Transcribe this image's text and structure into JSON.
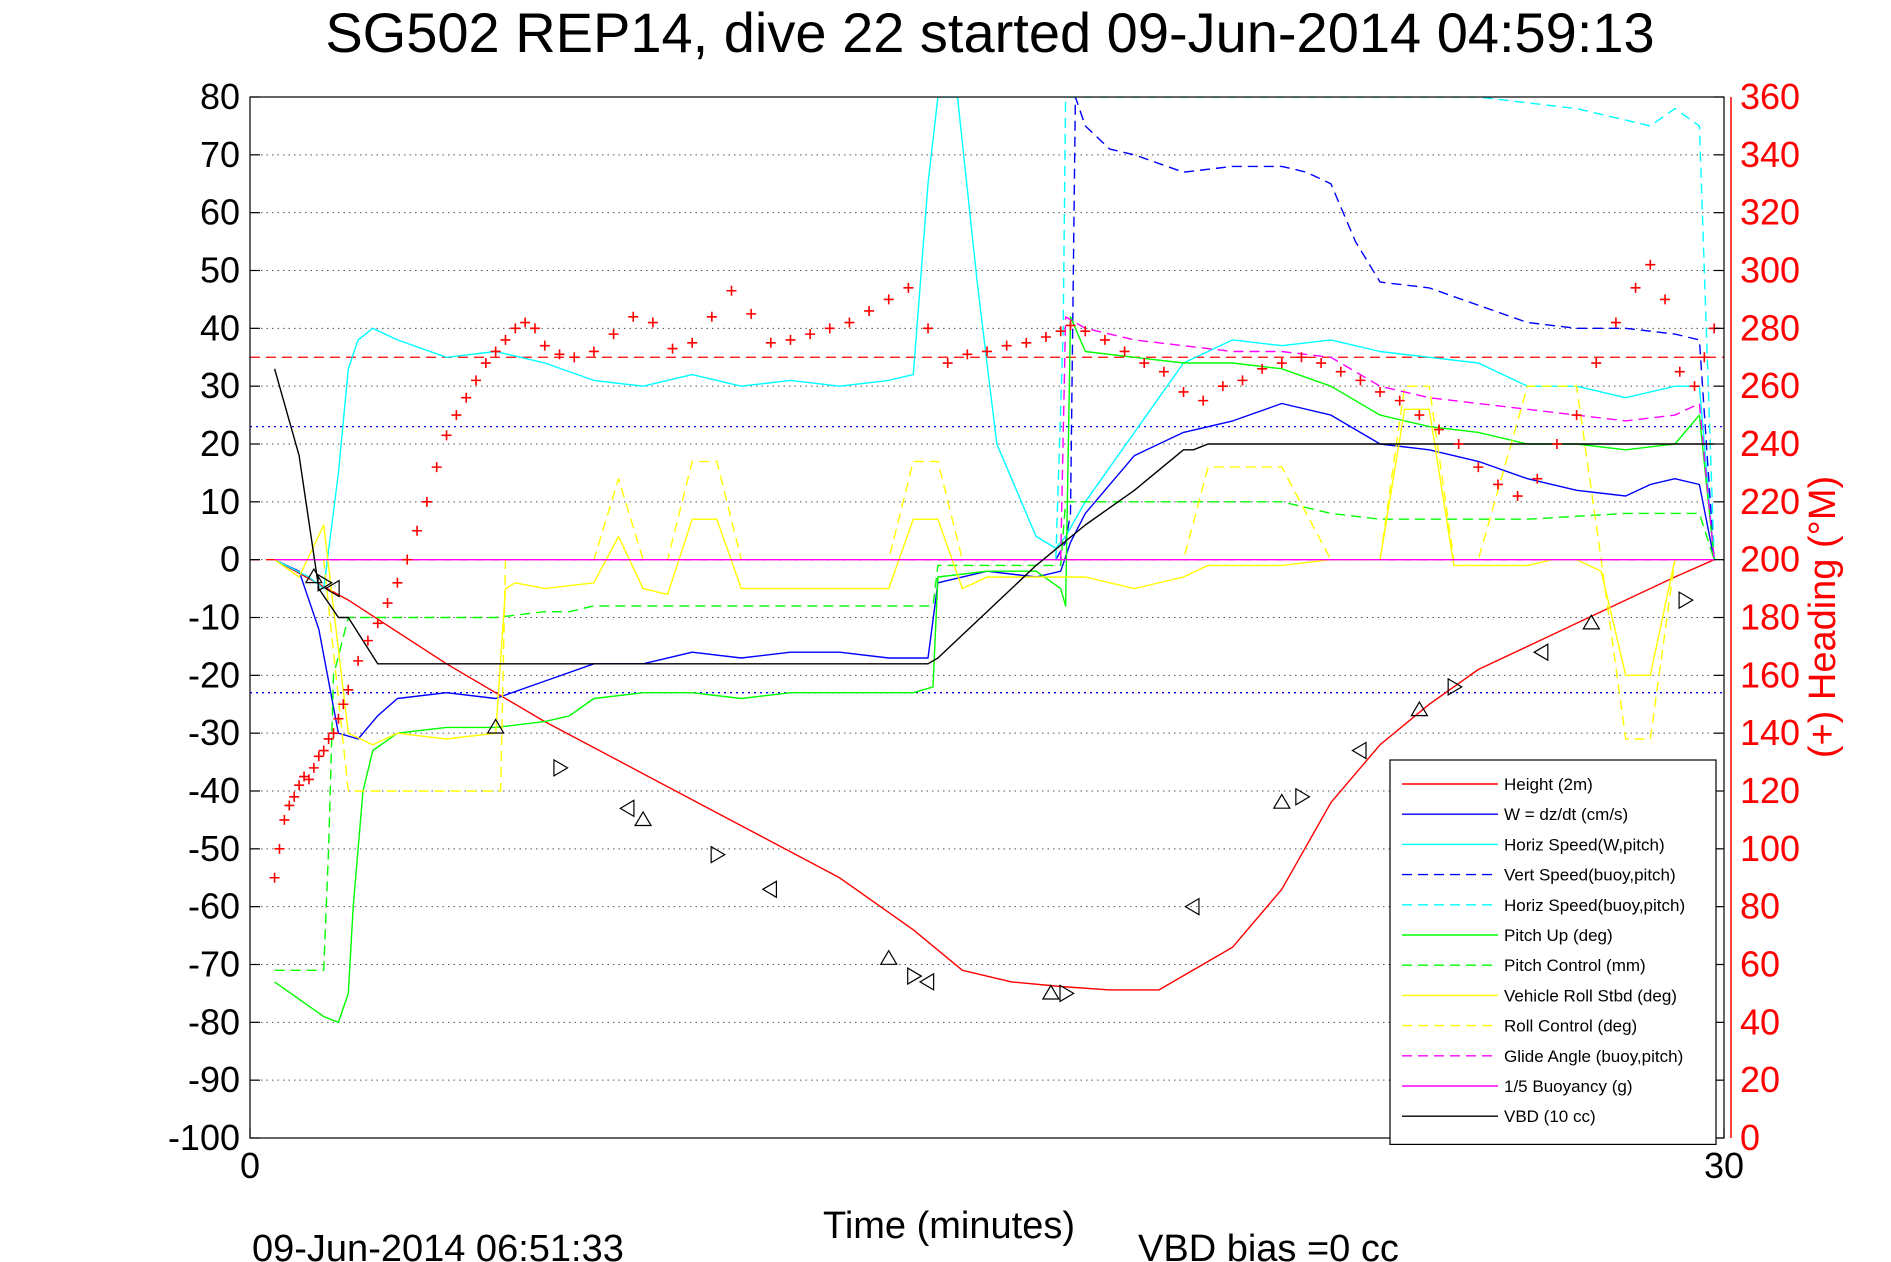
{
  "chart_data": {
    "type": "line",
    "title": "SG502 REP14, dive 22 started 09-Jun-2014 04:59:13",
    "xlabel": "Time (minutes)",
    "ylabel_right": "(+) Heading (°M)",
    "footer_left": "09-Jun-2014 06:51:33",
    "footer_right": "VBD bias =0 cc",
    "xlim": [
      0,
      30
    ],
    "ylim": [
      -100,
      80
    ],
    "ylim_right": [
      0,
      360
    ],
    "x_tick_labels": [
      "0",
      "30"
    ],
    "y_tick_labels": [
      "80",
      "70",
      "60",
      "50",
      "40",
      "30",
      "20",
      "10",
      "0",
      "-10",
      "-20",
      "-30",
      "-40",
      "-50",
      "-60",
      "-70",
      "-80",
      "-90",
      "-100"
    ],
    "y_right_tick_labels": [
      "360",
      "340",
      "320",
      "300",
      "280",
      "260",
      "240",
      "220",
      "200",
      "180",
      "160",
      "140",
      "120",
      "100",
      "80",
      "60",
      "40",
      "20",
      "0"
    ],
    "grid": true,
    "legend_position": "bottom-right",
    "series": [
      {
        "name": "Height (2m)",
        "color": "#ff0000",
        "style": "solid",
        "x": [
          0.5,
          2,
          4,
          6,
          8,
          10,
          12,
          13.5,
          14.5,
          15.5,
          16.5,
          17.5,
          18.5,
          20,
          21,
          22,
          23,
          24,
          25,
          26,
          27,
          28,
          29,
          29.8
        ],
        "y": [
          0,
          -7,
          -18,
          -28,
          -37,
          -46,
          -55,
          -64,
          -71,
          -73,
          -73.8,
          -74.4,
          -74.4,
          -67,
          -57,
          -42,
          -32,
          -25,
          -19,
          -15,
          -11,
          -7,
          -3,
          0
        ]
      },
      {
        "name": "W = dz/dt (cm/s)",
        "color": "#0000ff",
        "style": "solid",
        "x": [
          0.5,
          1,
          1.4,
          1.8,
          2.2,
          2.6,
          3,
          4,
          5,
          6,
          7,
          8,
          9,
          10,
          11,
          12,
          13,
          13.8,
          14,
          15,
          16,
          16.5,
          16.7,
          17,
          18,
          19,
          20,
          21,
          22,
          23,
          24,
          25,
          26,
          27,
          28,
          28.5,
          29,
          29.5,
          29.8
        ],
        "y": [
          0,
          -2,
          -12,
          -30,
          -31,
          -27,
          -24,
          -23,
          -24,
          -21,
          -18,
          -18,
          -16,
          -17,
          -16,
          -16,
          -17,
          -17,
          -4,
          -2,
          -3,
          -2,
          3,
          8,
          18,
          22,
          24,
          27,
          25,
          20,
          19,
          17,
          14,
          12,
          11,
          13,
          14,
          13,
          0
        ]
      },
      {
        "name": "Horiz Speed(W,pitch)",
        "color": "#00ffff",
        "style": "solid",
        "x": [
          0.5,
          1.2,
          1.5,
          1.8,
          2,
          2.2,
          2.5,
          3,
          4,
          5,
          6,
          7,
          8,
          9,
          10,
          11,
          12,
          13,
          13.5,
          13.8,
          14,
          14.4,
          14.8,
          15.2,
          15.6,
          16,
          16.4,
          16.6,
          16.8,
          17,
          18,
          19,
          20,
          21,
          22,
          23,
          24,
          25,
          26,
          27,
          28,
          29,
          29.5,
          29.8
        ],
        "y": [
          0,
          -3,
          -5,
          15,
          33,
          38,
          40,
          38,
          35,
          36,
          34,
          31,
          30,
          32,
          30,
          31,
          30,
          31,
          32,
          65,
          80,
          80,
          48,
          20,
          12,
          4,
          2,
          4,
          7,
          10,
          22,
          34,
          38,
          37,
          38,
          36,
          35,
          34,
          30,
          30,
          28,
          30,
          30,
          0
        ]
      },
      {
        "name": "Vert Speed(buoy,pitch)",
        "color": "#0000ff",
        "style": "dashed",
        "x": [
          16.4,
          16.6,
          16.7,
          16.8,
          17,
          17.5,
          18,
          19,
          20,
          21,
          21.5,
          22,
          22.5,
          23,
          24,
          25,
          26,
          27,
          28,
          29,
          29.5,
          29.8
        ],
        "y": [
          0,
          3,
          8,
          80,
          75,
          71,
          70,
          67,
          68,
          68,
          67,
          65,
          55,
          48,
          47,
          44,
          41,
          40,
          40,
          39,
          38,
          0
        ]
      },
      {
        "name": "Horiz Speed(buoy,pitch)",
        "color": "#00ffff",
        "style": "dashed",
        "x": [
          16.4,
          16.55,
          16.6,
          16.7,
          16.8,
          25,
          26,
          27,
          27.5,
          28,
          28.5,
          29,
          29.5,
          29.8
        ],
        "y": [
          0,
          40,
          80,
          80,
          80,
          80,
          79,
          78,
          77,
          76,
          75,
          78,
          75,
          0
        ]
      },
      {
        "name": "Pitch Up (deg)",
        "color": "#00ff00",
        "style": "solid",
        "x": [
          0.5,
          1,
          1.5,
          1.8,
          2,
          2.1,
          2.3,
          2.5,
          3,
          4,
          5,
          6,
          6.5,
          7,
          8,
          9,
          10,
          11,
          12,
          13,
          13.5,
          13.9,
          14,
          15,
          16,
          16.5,
          16.6,
          16.7,
          17,
          18,
          19,
          20,
          21,
          22,
          23,
          24,
          25,
          26,
          27,
          28,
          29,
          29.5,
          29.8
        ],
        "y": [
          -73,
          -76,
          -79,
          -80,
          -75,
          -60,
          -40,
          -33,
          -30,
          -29,
          -29,
          -28,
          -27,
          -24,
          -23,
          -23,
          -24,
          -23,
          -23,
          -23,
          -23,
          -22,
          -3,
          -2,
          -2,
          -5,
          -8,
          42,
          36,
          35,
          34,
          34,
          33,
          30,
          25,
          23,
          22,
          20,
          20,
          19,
          20,
          25,
          0
        ]
      },
      {
        "name": "Pitch Control (mm)",
        "color": "#00ff00",
        "style": "dashed",
        "x": [
          0.5,
          1.5,
          1.6,
          1.7,
          2,
          3,
          4,
          5,
          6,
          6.5,
          7,
          8,
          9,
          10,
          11,
          12,
          13,
          13.9,
          14,
          15,
          16,
          16.5,
          16.6,
          17,
          18,
          19,
          20,
          21,
          22,
          23,
          24,
          25,
          26,
          28,
          29,
          29.5,
          29.8
        ],
        "y": [
          -71,
          -71,
          -50,
          -20,
          -10,
          -10,
          -10,
          -10,
          -9,
          -9,
          -8,
          -8,
          -8,
          -8,
          -8,
          -8,
          -8,
          -8,
          -1,
          -1,
          -1,
          -1,
          10,
          10,
          10,
          10,
          10,
          10,
          8,
          7,
          7,
          7,
          7,
          8,
          8,
          8,
          0
        ]
      },
      {
        "name": "Vehicle Roll Stbd (deg)",
        "color": "#ffff00",
        "style": "solid",
        "x": [
          0.5,
          1,
          1.5,
          2,
          2.5,
          3,
          4,
          5,
          5.2,
          5.4,
          6,
          7,
          7.5,
          8,
          8.5,
          9,
          9.5,
          10,
          11,
          12,
          13,
          13.5,
          14,
          14.5,
          15,
          16,
          17,
          18,
          19,
          19.5,
          20,
          21,
          22,
          23,
          23.5,
          24,
          24.5,
          25,
          26,
          26.5,
          27,
          27.5,
          28,
          28.5,
          29,
          29.5,
          29.8
        ],
        "y": [
          0,
          -3,
          6,
          -30,
          -32,
          -30,
          -31,
          -30,
          -5,
          -4,
          -5,
          -4,
          4,
          -5,
          -6,
          7,
          7,
          -5,
          -5,
          -5,
          -5,
          7,
          7,
          -5,
          -3,
          -3,
          -3,
          -5,
          -3,
          -1,
          -1,
          -1,
          0,
          0,
          26,
          26,
          -1,
          -1,
          -1,
          0,
          0,
          -2,
          -20,
          -20,
          0,
          0,
          0
        ]
      },
      {
        "name": "Roll Control (deg)",
        "color": "#ffff00",
        "style": "dashed",
        "x": [
          0.5,
          1.5,
          2,
          3,
          4,
          5,
          5.1,
          5.2,
          6,
          7,
          7.5,
          8,
          8.5,
          9,
          9.5,
          10,
          11,
          12,
          13,
          13.5,
          14,
          14.5,
          15,
          16,
          17,
          18,
          19,
          19.5,
          20,
          21,
          22,
          23,
          23.5,
          24,
          24.5,
          25,
          26,
          27,
          27.5,
          28,
          28.5,
          29,
          29.5,
          29.8
        ],
        "y": [
          0,
          0,
          -40,
          -40,
          -40,
          -40,
          -40,
          0,
          0,
          0,
          14,
          0,
          0,
          17,
          17,
          0,
          0,
          0,
          0,
          17,
          17,
          0,
          0,
          0,
          0,
          0,
          0,
          16,
          16,
          16,
          0,
          0,
          30,
          30,
          0,
          0,
          30,
          30,
          0,
          -31,
          -31,
          0,
          0,
          0
        ]
      },
      {
        "name": "Glide Angle (buoy,pitch)",
        "color": "#ff00ff",
        "style": "dashed",
        "x": [
          16.5,
          16.6,
          17,
          18,
          19,
          20,
          21,
          22,
          23,
          24,
          25,
          26,
          27,
          28,
          29,
          29.5,
          29.8
        ],
        "y": [
          0,
          42,
          40,
          38,
          37,
          36,
          36,
          35,
          30,
          28,
          27,
          26,
          25,
          24,
          25,
          27,
          0
        ]
      },
      {
        "name": "1/5 Buoyancy (g)",
        "color": "#ff00ff",
        "style": "solid",
        "x": [
          0.5,
          29.8
        ],
        "y": [
          0,
          0
        ]
      },
      {
        "name": "VBD (10 cc)",
        "color": "#000000",
        "style": "solid",
        "x": [
          0.5,
          1,
          1.4,
          1.8,
          2,
          2.6,
          3,
          4,
          5,
          6,
          7,
          8,
          9,
          10,
          11,
          12,
          13,
          13.8,
          14,
          15,
          16,
          17,
          18,
          19,
          19.2,
          19.5,
          20,
          22,
          24,
          26,
          28,
          29.8
        ],
        "y": [
          33,
          18,
          -5,
          -10,
          -10,
          -18,
          -18,
          -18,
          -18,
          -18,
          -18,
          -18,
          -18,
          -18,
          -18,
          -18,
          -18,
          -18,
          -17,
          -9,
          -1,
          6,
          12,
          19,
          19,
          20,
          20,
          20,
          20,
          20,
          20,
          20
        ]
      }
    ],
    "reference_lines": [
      {
        "y_right": 270,
        "color": "#ff0000",
        "style": "dashed"
      },
      {
        "y": 0,
        "color": "#ff0000",
        "style": "dashed"
      },
      {
        "y": 23,
        "color": "#0000ff",
        "style": "dotted"
      },
      {
        "y": -23,
        "color": "#0000ff",
        "style": "dotted"
      }
    ],
    "heading": {
      "name": "Heading",
      "color": "#ff0000",
      "marker": "+",
      "x": [
        0.5,
        0.6,
        0.7,
        0.8,
        0.9,
        1,
        1.1,
        1.2,
        1.3,
        1.4,
        1.5,
        1.6,
        1.7,
        1.8,
        1.9,
        2,
        2.2,
        2.4,
        2.6,
        2.8,
        3,
        3.2,
        3.4,
        3.6,
        3.8,
        4,
        4.2,
        4.4,
        4.6,
        4.8,
        5,
        5.2,
        5.4,
        5.6,
        5.8,
        6,
        6.3,
        6.6,
        7,
        7.4,
        7.8,
        8.2,
        8.6,
        9,
        9.4,
        9.8,
        10.2,
        10.6,
        11,
        11.4,
        11.8,
        12.2,
        12.6,
        13,
        13.4,
        13.8,
        14.2,
        14.6,
        15,
        15.4,
        15.8,
        16.2,
        16.5,
        16.7,
        17,
        17.4,
        17.8,
        18.2,
        18.6,
        19,
        19.4,
        19.8,
        20.2,
        20.6,
        21,
        21.4,
        21.8,
        22.2,
        22.6,
        23,
        23.4,
        23.8,
        24.2,
        24.6,
        25,
        25.4,
        25.8,
        26.2,
        26.6,
        27,
        27.4,
        27.8,
        28.2,
        28.5,
        28.8,
        29.1,
        29.4,
        29.6,
        29.8
      ],
      "heading_deg": [
        90,
        100,
        110,
        115,
        118,
        122,
        125,
        124,
        128,
        132,
        134,
        138,
        140,
        145,
        150,
        155,
        165,
        172,
        178,
        185,
        192,
        200,
        210,
        220,
        232,
        243,
        250,
        256,
        262,
        268,
        272,
        276,
        280,
        282,
        280,
        274,
        271,
        270,
        272,
        278,
        284,
        282,
        273,
        275,
        284,
        293,
        285,
        275,
        276,
        278,
        280,
        282,
        286,
        290,
        294,
        280,
        268,
        271,
        272,
        274,
        275,
        277,
        279,
        281,
        279,
        276,
        272,
        268,
        265,
        258,
        255,
        260,
        262,
        266,
        268,
        270,
        268,
        265,
        262,
        258,
        255,
        250,
        245,
        240,
        232,
        226,
        222,
        228,
        240,
        250,
        268,
        282,
        294,
        302,
        290,
        265,
        260,
        270,
        280
      ]
    },
    "markers": {
      "description": "Triangle symbols along the Height trace",
      "x": [
        1.3,
        1.5,
        1.7,
        5,
        6.3,
        7.7,
        8,
        9.5,
        10.6,
        13,
        13.5,
        13.8,
        16.3,
        16.6,
        19.2,
        21,
        21.4,
        22.6,
        23.8,
        24.5,
        26.3,
        27.3,
        29.2,
        30.6
      ],
      "y": [
        -3,
        -4,
        -5,
        -29,
        -36,
        -43,
        -45,
        -51,
        -57,
        -69,
        -72,
        -73,
        -75,
        -75,
        -60,
        -42,
        -41,
        -33,
        -26,
        -22,
        -16,
        -11,
        -7,
        -4
      ]
    }
  }
}
